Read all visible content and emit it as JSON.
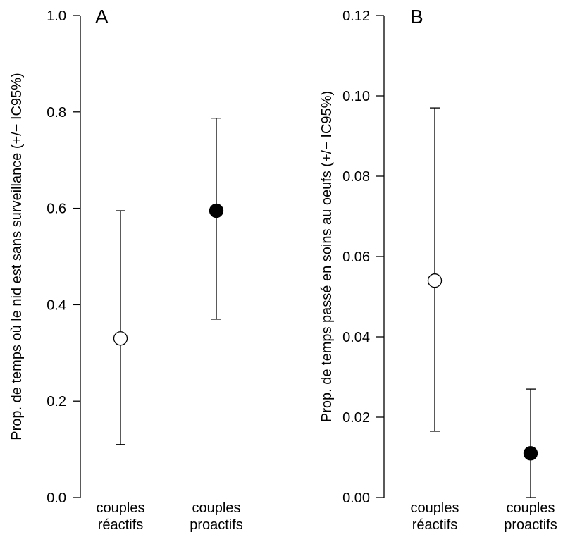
{
  "chart_data": [
    {
      "type": "scatter",
      "panel_label": "A",
      "ylabel": "Prop. de temps où le nid est sans surveillance (+/− IC95%)",
      "ylim": [
        0,
        1
      ],
      "yticks": [
        0.0,
        0.2,
        0.4,
        0.6,
        0.8,
        1.0
      ],
      "ytick_labels": [
        "0.0",
        "0.2",
        "0.4",
        "0.6",
        "0.8",
        "1.0"
      ],
      "categories": [
        [
          "couples",
          "réactifs"
        ],
        [
          "couples",
          "proactifs"
        ]
      ],
      "points": [
        {
          "category": "couples réactifs",
          "value": 0.33,
          "ci_low": 0.11,
          "ci_high": 0.595,
          "marker": "open"
        },
        {
          "category": "couples proactifs",
          "value": 0.595,
          "ci_low": 0.37,
          "ci_high": 0.787,
          "marker": "filled"
        }
      ]
    },
    {
      "type": "scatter",
      "panel_label": "B",
      "ylabel": "Prop. de temps passé en soins au oeufs (+/− IC95%)",
      "ylim": [
        0,
        0.12
      ],
      "yticks": [
        0.0,
        0.02,
        0.04,
        0.06,
        0.08,
        0.1,
        0.12
      ],
      "ytick_labels": [
        "0.00",
        "0.02",
        "0.04",
        "0.06",
        "0.08",
        "0.10",
        "0.12"
      ],
      "categories": [
        [
          "couples",
          "réactifs"
        ],
        [
          "couples",
          "proactifs"
        ]
      ],
      "points": [
        {
          "category": "couples réactifs",
          "value": 0.054,
          "ci_low": 0.0165,
          "ci_high": 0.097,
          "marker": "open"
        },
        {
          "category": "couples proactifs",
          "value": 0.011,
          "ci_low": 0.0,
          "ci_high": 0.027,
          "marker": "filled"
        }
      ]
    }
  ]
}
